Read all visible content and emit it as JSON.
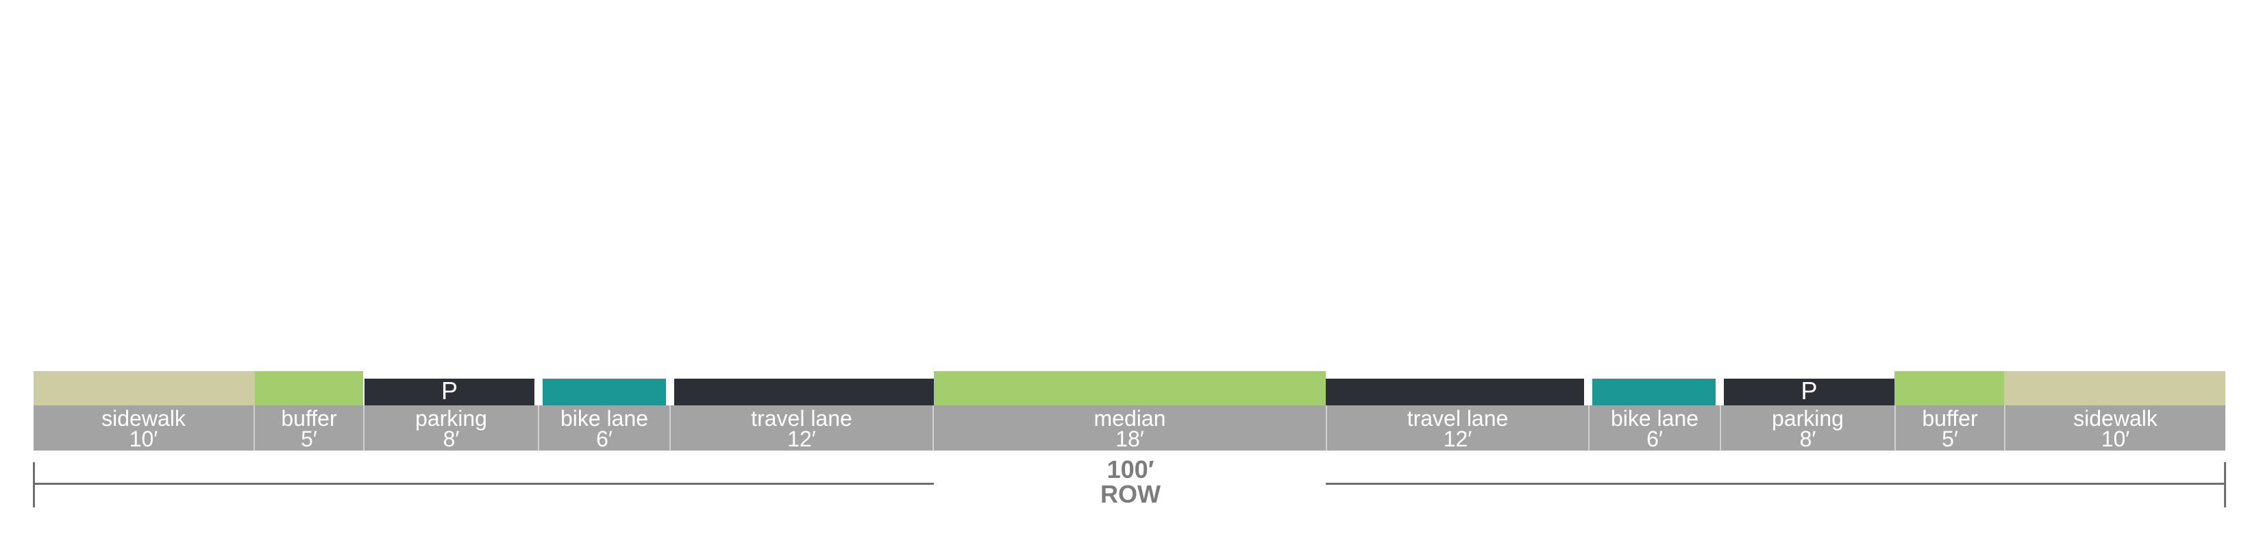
{
  "segments": [
    {
      "name": "sidewalk",
      "width": "10′",
      "color": "#cecca2",
      "kind": "tall"
    },
    {
      "name": "buffer",
      "width": "5′",
      "color": "#a4cd6d",
      "kind": "tall"
    },
    {
      "name": "parking",
      "width": "8′",
      "color": "#2c2f36",
      "kind": "short",
      "glyph": "P"
    },
    {
      "name": "bike lane",
      "width": "6′",
      "color": "#1b9895",
      "kind": "short"
    },
    {
      "name": "travel lane",
      "width": "12′",
      "color": "#2c2f36",
      "kind": "short"
    },
    {
      "name": "median",
      "width": "18′",
      "color": "#a4cd6d",
      "kind": "tall"
    },
    {
      "name": "travel lane",
      "width": "12′",
      "color": "#2c2f36",
      "kind": "short"
    },
    {
      "name": "bike lane",
      "width": "6′",
      "color": "#1b9895",
      "kind": "short"
    },
    {
      "name": "parking",
      "width": "8′",
      "color": "#2c2f36",
      "kind": "short",
      "glyph": "P"
    },
    {
      "name": "buffer",
      "width": "5′",
      "color": "#a4cd6d",
      "kind": "tall"
    },
    {
      "name": "sidewalk",
      "width": "10′",
      "color": "#cecca2",
      "kind": "tall"
    }
  ],
  "total": {
    "width": "100′",
    "label": "ROW"
  }
}
